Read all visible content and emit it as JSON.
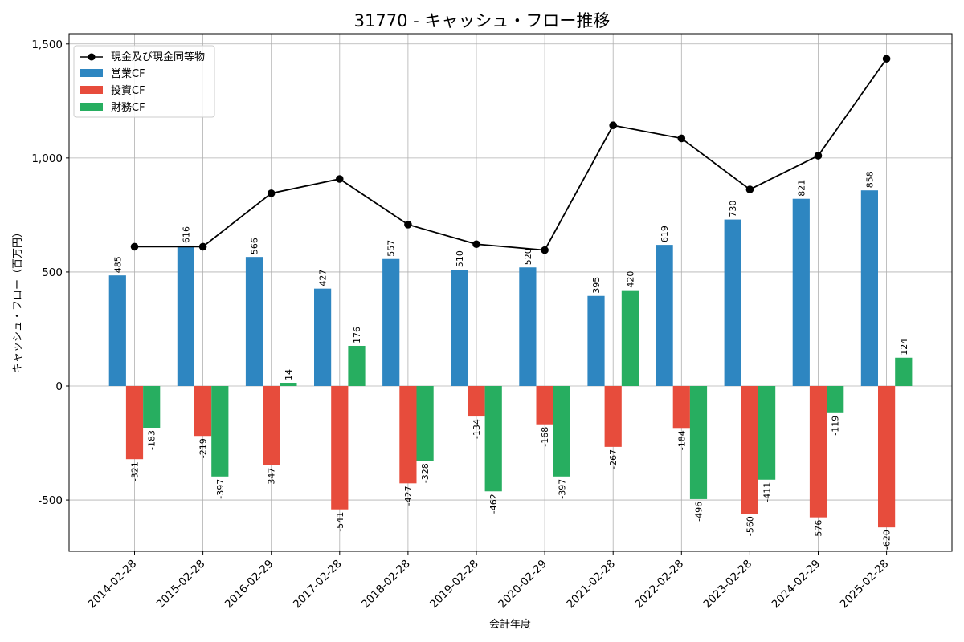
{
  "chart_data": {
    "type": "bar",
    "title": "31770 - キャッシュ・フロー推移",
    "xlabel": "会計年度",
    "ylabel": "キャッシュ・フロー（百万円）",
    "categories": [
      "2014-02-28",
      "2015-02-28",
      "2016-02-29",
      "2017-02-28",
      "2018-02-28",
      "2019-02-28",
      "2020-02-29",
      "2021-02-28",
      "2022-02-28",
      "2023-02-28",
      "2024-02-29",
      "2025-02-28"
    ],
    "ylim": [
      -725,
      1545
    ],
    "yticks": [
      -500,
      0,
      500,
      1000,
      1500
    ],
    "ytick_labels": [
      "-500",
      "0",
      "500",
      "1,000",
      "1,500"
    ],
    "grid": true,
    "legend_position": "top-left",
    "series": [
      {
        "name": "営業CF",
        "type": "bar",
        "color": "#2e86c1",
        "values": [
          485,
          616,
          566,
          427,
          557,
          510,
          520,
          395,
          619,
          730,
          821,
          858
        ],
        "labels": [
          "485",
          "616",
          "566",
          "427",
          "557",
          "510",
          "520",
          "395",
          "619",
          "730",
          "821",
          "858"
        ]
      },
      {
        "name": "投資CF",
        "type": "bar",
        "color": "#e74c3c",
        "values": [
          -321,
          -219,
          -347,
          -541,
          -427,
          -134,
          -168,
          -267,
          -184,
          -560,
          -576,
          -620
        ],
        "labels": [
          "-321",
          "-219",
          "-347",
          "-541",
          "-427",
          "-134",
          "-168",
          "-267",
          "-184",
          "-560",
          "-576",
          "-620"
        ]
      },
      {
        "name": "財務CF",
        "type": "bar",
        "color": "#27ae60",
        "values": [
          -183,
          -397,
          14,
          176,
          -328,
          -462,
          -397,
          420,
          -496,
          -411,
          -119,
          124
        ],
        "labels": [
          "-183",
          "-397",
          "14",
          "176",
          "-328",
          "-462",
          "-397",
          "420",
          "-496",
          "-411",
          "-119",
          "124"
        ]
      },
      {
        "name": "現金及び現金同等物",
        "type": "line",
        "color": "#000000",
        "values": [
          611,
          611,
          845,
          908,
          708,
          622,
          596,
          1143,
          1086,
          862,
          1010,
          1435
        ]
      }
    ]
  }
}
